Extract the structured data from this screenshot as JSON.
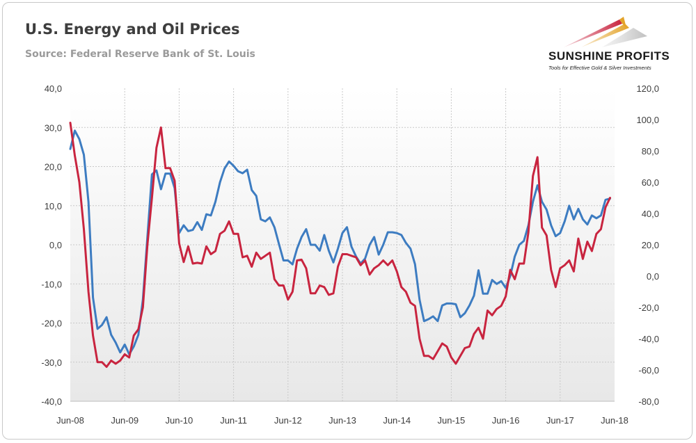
{
  "header": {
    "title": "U.S. Energy and Oil Prices",
    "subtitle": "Source: Federal Reserve Bank of St. Louis"
  },
  "logo": {
    "name": "SUNSHINE PROFITS",
    "tagline": "Tools for Effective Gold & Silver Investments"
  },
  "colors": {
    "energy_series": "#3d7cc1",
    "oil_series": "#c8243f",
    "plot_bg_top": "#ffffff",
    "plot_bg_bottom": "#e8e8e8",
    "grid": "#c8c8c8"
  },
  "chart_data": {
    "type": "line",
    "title": "U.S. Energy and Oil Prices",
    "subtitle": "Source: Federal Reserve Bank of St. Louis",
    "x_range": [
      "2008-06",
      "2018-06"
    ],
    "x_tick_labels": [
      "Jun-08",
      "Jun-09",
      "Jun-10",
      "Jun-11",
      "Jun-12",
      "Jun-13",
      "Jun-14",
      "Jun-15",
      "Jun-16",
      "Jun-17",
      "Jun-18"
    ],
    "y_left": {
      "ylim": [
        -40,
        40
      ],
      "ticks": [
        "40,0",
        "30,0",
        "20,0",
        "10,0",
        "0,0",
        "-10,0",
        "-20,0",
        "-30,0",
        "-40,0"
      ]
    },
    "y_right": {
      "ylim": [
        -80,
        120
      ],
      "ticks": [
        "120,0",
        "100,0",
        "80,0",
        "60,0",
        "40,0",
        "20,0",
        "0,0",
        "-20,0",
        "-40,0",
        "-60,0",
        "-80,0"
      ]
    },
    "grid": true,
    "legend": "none",
    "series": [
      {
        "axis": "left",
        "color": "#3d7cc1",
        "points": [
          [
            "2008-06",
            24.5
          ],
          [
            "2008-07",
            29.2
          ],
          [
            "2008-08",
            27
          ],
          [
            "2008-09",
            23
          ],
          [
            "2008-10",
            11
          ],
          [
            "2008-11",
            -13.5
          ],
          [
            "2008-12",
            -21.5
          ],
          [
            "2009-01",
            -20.5
          ],
          [
            "2009-02",
            -18.5
          ],
          [
            "2009-03",
            -23
          ],
          [
            "2009-04",
            -25
          ],
          [
            "2009-05",
            -27.5
          ],
          [
            "2009-06",
            -25.5
          ],
          [
            "2009-07",
            -28
          ],
          [
            "2009-08",
            -26
          ],
          [
            "2009-09",
            -23
          ],
          [
            "2009-10",
            -14
          ],
          [
            "2009-11",
            2
          ],
          [
            "2009-12",
            18
          ],
          [
            "2010-01",
            19
          ],
          [
            "2010-02",
            14.2
          ],
          [
            "2010-03",
            18.2
          ],
          [
            "2010-04",
            18.2
          ],
          [
            "2010-05",
            14.5
          ],
          [
            "2010-06",
            3
          ],
          [
            "2010-07",
            5
          ],
          [
            "2010-08",
            3.5
          ],
          [
            "2010-09",
            3.8
          ],
          [
            "2010-10",
            5.8
          ],
          [
            "2010-11",
            3.8
          ],
          [
            "2010-12",
            7.8
          ],
          [
            "2011-01",
            7.5
          ],
          [
            "2011-02",
            11
          ],
          [
            "2011-03",
            16
          ],
          [
            "2011-04",
            19.5
          ],
          [
            "2011-05",
            21.3
          ],
          [
            "2011-06",
            20.2
          ],
          [
            "2011-07",
            18.8
          ],
          [
            "2011-08",
            18.3
          ],
          [
            "2011-09",
            19.2
          ],
          [
            "2011-10",
            14
          ],
          [
            "2011-11",
            12.5
          ],
          [
            "2011-12",
            6.5
          ],
          [
            "2012-01",
            6
          ],
          [
            "2012-02",
            7
          ],
          [
            "2012-03",
            4.5
          ],
          [
            "2012-04",
            0.2
          ],
          [
            "2012-05",
            -4
          ],
          [
            "2012-06",
            -4
          ],
          [
            "2012-07",
            -5
          ],
          [
            "2012-08",
            -1
          ],
          [
            "2012-09",
            2
          ],
          [
            "2012-10",
            4
          ],
          [
            "2012-11",
            0
          ],
          [
            "2012-12",
            0
          ],
          [
            "2013-01",
            -1.5
          ],
          [
            "2013-02",
            2.5
          ],
          [
            "2013-03",
            -1.5
          ],
          [
            "2013-04",
            -4.5
          ],
          [
            "2013-05",
            -1
          ],
          [
            "2013-06",
            3
          ],
          [
            "2013-07",
            4.5
          ],
          [
            "2013-08",
            -0.5
          ],
          [
            "2013-09",
            -3
          ],
          [
            "2013-10",
            -4.8
          ],
          [
            "2013-11",
            -3.5
          ],
          [
            "2013-12",
            0
          ],
          [
            "2014-01",
            2
          ],
          [
            "2014-02",
            -2.5
          ],
          [
            "2014-03",
            0
          ],
          [
            "2014-04",
            3.2
          ],
          [
            "2014-05",
            3.2
          ],
          [
            "2014-06",
            3
          ],
          [
            "2014-07",
            2.5
          ],
          [
            "2014-08",
            0.5
          ],
          [
            "2014-09",
            -1
          ],
          [
            "2014-10",
            -5
          ],
          [
            "2014-11",
            -14
          ],
          [
            "2014-12",
            -19.5
          ],
          [
            "2015-01",
            -19
          ],
          [
            "2015-02",
            -18.3
          ],
          [
            "2015-03",
            -19.5
          ],
          [
            "2015-04",
            -15.5
          ],
          [
            "2015-05",
            -15
          ],
          [
            "2015-06",
            -15
          ],
          [
            "2015-07",
            -15.2
          ],
          [
            "2015-08",
            -18.5
          ],
          [
            "2015-09",
            -17.5
          ],
          [
            "2015-10",
            -15.5
          ],
          [
            "2015-11",
            -13
          ],
          [
            "2015-12",
            -6.5
          ],
          [
            "2016-01",
            -12.5
          ],
          [
            "2016-02",
            -12.5
          ],
          [
            "2016-03",
            -9
          ],
          [
            "2016-04",
            -10
          ],
          [
            "2016-05",
            -9.3
          ],
          [
            "2016-06",
            -11
          ],
          [
            "2016-07",
            -8
          ],
          [
            "2016-08",
            -3
          ],
          [
            "2016-09",
            0
          ],
          [
            "2016-10",
            1
          ],
          [
            "2016-11",
            5
          ],
          [
            "2016-12",
            11
          ],
          [
            "2017-01",
            15.2
          ],
          [
            "2017-02",
            11
          ],
          [
            "2017-03",
            9
          ],
          [
            "2017-04",
            5
          ],
          [
            "2017-05",
            2.2
          ],
          [
            "2017-06",
            3
          ],
          [
            "2017-07",
            6
          ],
          [
            "2017-08",
            10
          ],
          [
            "2017-09",
            6.5
          ],
          [
            "2017-10",
            9.2
          ],
          [
            "2017-11",
            6.5
          ],
          [
            "2017-12",
            5.2
          ],
          [
            "2018-01",
            7.5
          ],
          [
            "2018-02",
            6.8
          ],
          [
            "2018-03",
            7.5
          ],
          [
            "2018-04",
            11.5
          ],
          [
            "2018-05",
            11.8
          ]
        ]
      },
      {
        "axis": "right",
        "color": "#c8243f",
        "points": [
          [
            "2008-06",
            98
          ],
          [
            "2008-07",
            77
          ],
          [
            "2008-08",
            60
          ],
          [
            "2008-09",
            30
          ],
          [
            "2008-10",
            -10
          ],
          [
            "2008-11",
            -38
          ],
          [
            "2008-12",
            -55
          ],
          [
            "2009-01",
            -55
          ],
          [
            "2009-02",
            -58
          ],
          [
            "2009-03",
            -54
          ],
          [
            "2009-04",
            -56
          ],
          [
            "2009-05",
            -54
          ],
          [
            "2009-06",
            -50
          ],
          [
            "2009-07",
            -52
          ],
          [
            "2009-08",
            -38
          ],
          [
            "2009-09",
            -34
          ],
          [
            "2009-10",
            -20
          ],
          [
            "2009-11",
            20
          ],
          [
            "2009-12",
            50
          ],
          [
            "2010-01",
            82
          ],
          [
            "2010-02",
            95
          ],
          [
            "2010-03",
            69
          ],
          [
            "2010-04",
            69
          ],
          [
            "2010-05",
            61
          ],
          [
            "2010-06",
            21
          ],
          [
            "2010-07",
            9
          ],
          [
            "2010-08",
            19
          ],
          [
            "2010-09",
            8
          ],
          [
            "2010-10",
            8.5
          ],
          [
            "2010-11",
            8
          ],
          [
            "2010-12",
            19
          ],
          [
            "2011-01",
            14
          ],
          [
            "2011-02",
            16
          ],
          [
            "2011-03",
            27
          ],
          [
            "2011-04",
            29
          ],
          [
            "2011-05",
            35
          ],
          [
            "2011-06",
            27
          ],
          [
            "2011-07",
            27
          ],
          [
            "2011-08",
            12
          ],
          [
            "2011-09",
            13
          ],
          [
            "2011-10",
            6
          ],
          [
            "2011-11",
            15
          ],
          [
            "2011-12",
            11
          ],
          [
            "2012-01",
            13
          ],
          [
            "2012-02",
            15
          ],
          [
            "2012-03",
            -2
          ],
          [
            "2012-04",
            -6
          ],
          [
            "2012-05",
            -6
          ],
          [
            "2012-06",
            -15
          ],
          [
            "2012-07",
            -10
          ],
          [
            "2012-08",
            10
          ],
          [
            "2012-09",
            10.5
          ],
          [
            "2012-10",
            5
          ],
          [
            "2012-11",
            -11
          ],
          [
            "2012-12",
            -11
          ],
          [
            "2013-01",
            -6
          ],
          [
            "2013-02",
            -7
          ],
          [
            "2013-03",
            -12
          ],
          [
            "2013-04",
            -11
          ],
          [
            "2013-05",
            6
          ],
          [
            "2013-06",
            14
          ],
          [
            "2013-07",
            14
          ],
          [
            "2013-08",
            13
          ],
          [
            "2013-09",
            12
          ],
          [
            "2013-10",
            7
          ],
          [
            "2013-11",
            10
          ],
          [
            "2013-12",
            1
          ],
          [
            "2014-01",
            5
          ],
          [
            "2014-02",
            7
          ],
          [
            "2014-03",
            10
          ],
          [
            "2014-04",
            7
          ],
          [
            "2014-05",
            10
          ],
          [
            "2014-06",
            3
          ],
          [
            "2014-07",
            -7
          ],
          [
            "2014-08",
            -10
          ],
          [
            "2014-09",
            -17
          ],
          [
            "2014-10",
            -19
          ],
          [
            "2014-11",
            -40
          ],
          [
            "2014-12",
            -51
          ],
          [
            "2015-01",
            -51
          ],
          [
            "2015-02",
            -53
          ],
          [
            "2015-03",
            -48
          ],
          [
            "2015-04",
            -43
          ],
          [
            "2015-05",
            -45
          ],
          [
            "2015-06",
            -52
          ],
          [
            "2015-07",
            -56
          ],
          [
            "2015-08",
            -51
          ],
          [
            "2015-09",
            -46
          ],
          [
            "2015-10",
            -45
          ],
          [
            "2015-11",
            -37
          ],
          [
            "2015-12",
            -33
          ],
          [
            "2016-01",
            -40
          ],
          [
            "2016-02",
            -22
          ],
          [
            "2016-03",
            -25
          ],
          [
            "2016-04",
            -21
          ],
          [
            "2016-05",
            -19
          ],
          [
            "2016-06",
            -13
          ],
          [
            "2016-07",
            4
          ],
          [
            "2016-08",
            -2
          ],
          [
            "2016-09",
            8
          ],
          [
            "2016-10",
            8
          ],
          [
            "2016-11",
            28
          ],
          [
            "2016-12",
            64
          ],
          [
            "2017-01",
            76
          ],
          [
            "2017-02",
            31
          ],
          [
            "2017-03",
            26
          ],
          [
            "2017-04",
            4
          ],
          [
            "2017-05",
            -7
          ],
          [
            "2017-06",
            5
          ],
          [
            "2017-07",
            7
          ],
          [
            "2017-08",
            10
          ],
          [
            "2017-09",
            3
          ],
          [
            "2017-10",
            24
          ],
          [
            "2017-11",
            11
          ],
          [
            "2017-12",
            22
          ],
          [
            "2018-01",
            16
          ],
          [
            "2018-02",
            27
          ],
          [
            "2018-03",
            30
          ],
          [
            "2018-04",
            44
          ],
          [
            "2018-05",
            50
          ]
        ]
      }
    ]
  }
}
